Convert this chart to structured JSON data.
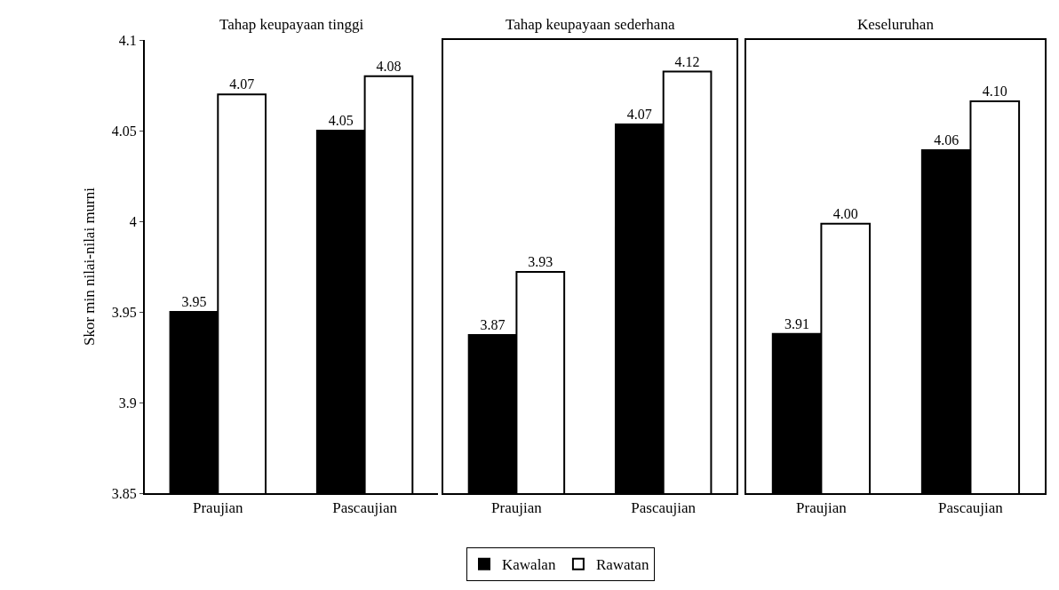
{
  "chart_data": [
    {
      "type": "bar",
      "title": "Tahap keupayaan tinggi",
      "ylabel": "Skor min nilai-nilai murni",
      "categories": [
        "Praujian",
        "Pascaujian"
      ],
      "series": [
        {
          "name": "Kawalan",
          "color": "#000000",
          "values": [
            3.95,
            4.05
          ],
          "value_labels": [
            "3.95",
            "4.05"
          ]
        },
        {
          "name": "Rawatan",
          "color": "#ffffff",
          "values": [
            4.07,
            4.08
          ],
          "value_labels": [
            "4.07",
            "4.08"
          ]
        }
      ],
      "ylim": [
        3.85,
        4.1
      ],
      "yticks": [
        3.85,
        3.9,
        3.95,
        4,
        4.05,
        4.1
      ],
      "legend": "bottom"
    },
    {
      "type": "bar",
      "title": "Tahap keupayaan sederhana",
      "categories": [
        "Praujian",
        "Pascaujian"
      ],
      "series": [
        {
          "color": "#000000",
          "values": [
            3.87,
            4.07
          ],
          "value_labels": [
            "3.87",
            "4.07"
          ]
        },
        {
          "color": "#ffffff",
          "values": [
            3.93,
            4.12
          ],
          "value_labels": [
            "3.93",
            "4.12"
          ]
        }
      ],
      "ylim": [
        3.72,
        4.15
      ],
      "tick_labels": "x"
    },
    {
      "type": "bar",
      "title": "Keseluruhan",
      "categories": [
        "Praujian",
        "Pascaujian"
      ],
      "series": [
        {
          "color": "#000000",
          "values": [
            3.91,
            4.06
          ],
          "value_labels": [
            "3.91",
            "4.06"
          ]
        },
        {
          "color": "#ffffff",
          "values": [
            4.0,
            4.1
          ],
          "value_labels": [
            "4.00",
            "4.10"
          ]
        }
      ],
      "ylim": [
        3.78,
        4.15
      ],
      "tick_labels": "x"
    }
  ]
}
